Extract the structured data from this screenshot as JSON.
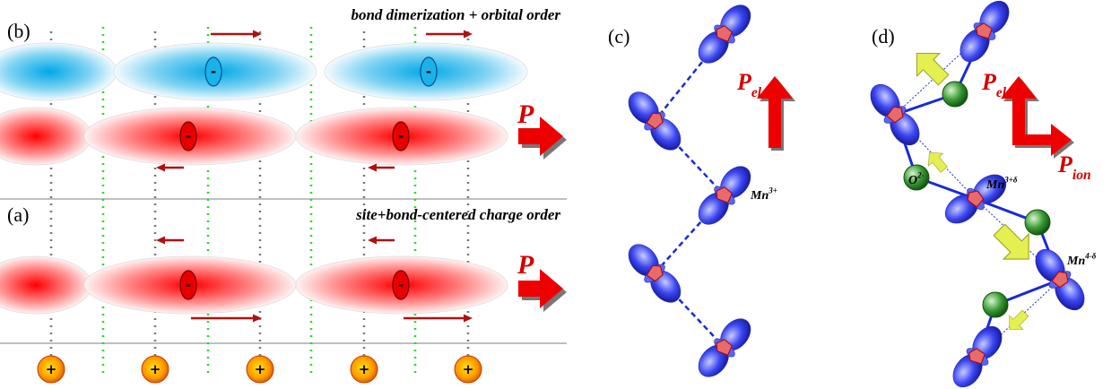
{
  "panel_b": {
    "label": "(b)",
    "title": "bond dimerization + orbital order",
    "polarization": "P",
    "charge": "-"
  },
  "panel_a": {
    "label": "(a)",
    "title": "site+bond-centered charge order",
    "polarization": "P",
    "charge": "-",
    "ion_charge": "+"
  },
  "panel_c": {
    "label": "(c)",
    "polarization": {
      "symbol": "P",
      "subscript": "el"
    },
    "site": {
      "symbol": "Mn",
      "superscript": "3+"
    }
  },
  "panel_d": {
    "label": "(d)",
    "polarization_el": {
      "symbol": "P",
      "subscript": "el"
    },
    "polarization_ion": {
      "symbol": "P",
      "subscript": "ion"
    },
    "oxygen": {
      "symbol": "O",
      "superscript": "2-"
    },
    "site_a": {
      "symbol": "Mn",
      "superscript": "3+δ"
    },
    "site_b": {
      "symbol": "Mn",
      "superscript": "4-δ"
    }
  }
}
